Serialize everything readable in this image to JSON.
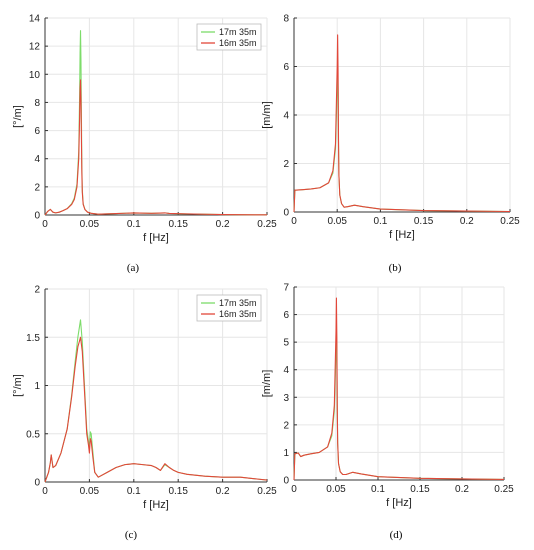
{
  "colors": {
    "series_a": "#7ddc6a",
    "series_b": "#e2473a",
    "grid": "#e6e6e6",
    "axis": "#333333"
  },
  "chart_data": [
    {
      "type": "line",
      "caption": "(a)",
      "xlabel": "f [Hz]",
      "ylabel": "[°/m]",
      "xlim": [
        0,
        0.25
      ],
      "ylim": [
        0,
        14
      ],
      "xticks": [
        0,
        0.05,
        0.1,
        0.15,
        0.2,
        0.25
      ],
      "xtick_labels": [
        "0",
        "0.05",
        "0.1",
        "0.15",
        "0.2",
        "0.25"
      ],
      "yticks": [
        0,
        2,
        4,
        6,
        8,
        10,
        12,
        14
      ],
      "ytick_labels": [
        "0",
        "2",
        "4",
        "6",
        "8",
        "10",
        "12",
        "14"
      ],
      "grid": true,
      "legend": "top-right",
      "series": [
        {
          "name": "17m 35m",
          "color": "#7ddc6a",
          "x": [
            0,
            0.003,
            0.006,
            0.009,
            0.012,
            0.016,
            0.02,
            0.025,
            0.03,
            0.033,
            0.036,
            0.038,
            0.039,
            0.0395,
            0.04,
            0.0405,
            0.041,
            0.0415,
            0.042,
            0.043,
            0.045,
            0.048,
            0.052,
            0.06,
            0.08,
            0.1,
            0.12,
            0.135,
            0.14,
            0.16,
            0.2,
            0.25
          ],
          "y": [
            0,
            0.25,
            0.4,
            0.2,
            0.15,
            0.2,
            0.3,
            0.45,
            0.8,
            1.2,
            2.2,
            4.5,
            8.5,
            11.5,
            13.1,
            11,
            7,
            3.5,
            1.8,
            0.8,
            0.4,
            0.2,
            0.12,
            0.06,
            0.1,
            0.15,
            0.12,
            0.15,
            0.11,
            0.08,
            0.03,
            0.01
          ]
        },
        {
          "name": "16m 35m",
          "color": "#e2473a",
          "x": [
            0,
            0.003,
            0.006,
            0.009,
            0.012,
            0.016,
            0.02,
            0.025,
            0.03,
            0.033,
            0.036,
            0.038,
            0.039,
            0.0395,
            0.04,
            0.0405,
            0.041,
            0.0415,
            0.042,
            0.043,
            0.045,
            0.048,
            0.052,
            0.06,
            0.08,
            0.1,
            0.12,
            0.135,
            0.14,
            0.16,
            0.2,
            0.25
          ],
          "y": [
            0,
            0.25,
            0.4,
            0.2,
            0.15,
            0.2,
            0.3,
            0.45,
            0.75,
            1.1,
            2,
            4,
            7,
            9,
            9.6,
            8.2,
            5.5,
            3,
            1.6,
            0.75,
            0.38,
            0.2,
            0.12,
            0.06,
            0.1,
            0.15,
            0.12,
            0.15,
            0.11,
            0.08,
            0.03,
            0.01
          ]
        }
      ]
    },
    {
      "type": "line",
      "caption": "(b)",
      "xlabel": "f [Hz]",
      "ylabel": "[m/m]",
      "xlim": [
        0,
        0.25
      ],
      "ylim": [
        0,
        8
      ],
      "xticks": [
        0,
        0.05,
        0.1,
        0.15,
        0.2,
        0.25
      ],
      "xtick_labels": [
        "0",
        "0.05",
        "0.1",
        "0.15",
        "0.2",
        "0.25"
      ],
      "yticks": [
        0,
        2,
        4,
        6,
        8
      ],
      "ytick_labels": [
        "0",
        "2",
        "4",
        "6",
        "8"
      ],
      "grid": true,
      "legend": "none",
      "series": [
        {
          "name": "17m 35m",
          "color": "#7ddc6a",
          "x": [
            0,
            0.001,
            0.01,
            0.02,
            0.03,
            0.04,
            0.045,
            0.048,
            0.05,
            0.0505,
            0.051,
            0.0515,
            0.052,
            0.053,
            0.055,
            0.058,
            0.062,
            0.07,
            0.08,
            0.1,
            0.15,
            0.2,
            0.25
          ],
          "y": [
            0,
            0.9,
            0.92,
            0.95,
            1.0,
            1.2,
            1.6,
            2.6,
            5.2,
            6.1,
            5.0,
            2.8,
            1.5,
            0.7,
            0.35,
            0.2,
            0.22,
            0.28,
            0.22,
            0.12,
            0.06,
            0.04,
            0.02
          ]
        },
        {
          "name": "16m 35m",
          "color": "#e2473a",
          "x": [
            0,
            0.001,
            0.01,
            0.02,
            0.03,
            0.04,
            0.045,
            0.048,
            0.05,
            0.0505,
            0.051,
            0.0515,
            0.052,
            0.053,
            0.055,
            0.058,
            0.062,
            0.07,
            0.08,
            0.1,
            0.15,
            0.2,
            0.25
          ],
          "y": [
            0,
            0.9,
            0.92,
            0.95,
            1.0,
            1.2,
            1.7,
            2.8,
            6.0,
            7.3,
            5.8,
            3.0,
            1.5,
            0.7,
            0.35,
            0.2,
            0.22,
            0.28,
            0.22,
            0.12,
            0.06,
            0.04,
            0.02
          ]
        }
      ]
    },
    {
      "type": "line",
      "caption": "(c)",
      "xlabel": "f [Hz]",
      "ylabel": "[°/m]",
      "xlim": [
        0,
        0.25
      ],
      "ylim": [
        0,
        2
      ],
      "xticks": [
        0,
        0.05,
        0.1,
        0.15,
        0.2,
        0.25
      ],
      "xtick_labels": [
        "0",
        "0.05",
        "0.1",
        "0.15",
        "0.2",
        "0.25"
      ],
      "yticks": [
        0,
        0.5,
        1,
        1.5,
        2
      ],
      "ytick_labels": [
        "0",
        "0.5",
        "1",
        "1.5",
        "2"
      ],
      "grid": true,
      "legend": "top-right",
      "series": [
        {
          "name": "17m 35m",
          "color": "#7ddc6a",
          "x": [
            0,
            0.004,
            0.006,
            0.007,
            0.009,
            0.012,
            0.018,
            0.025,
            0.03,
            0.034,
            0.037,
            0.04,
            0.042,
            0.045,
            0.047,
            0.049,
            0.05,
            0.051,
            0.052,
            0.054,
            0.056,
            0.06,
            0.07,
            0.08,
            0.09,
            0.1,
            0.11,
            0.12,
            0.125,
            0.13,
            0.135,
            0.14,
            0.145,
            0.15,
            0.16,
            0.18,
            0.2,
            0.22,
            0.24,
            0.25
          ],
          "y": [
            0,
            0.1,
            0.2,
            0.28,
            0.15,
            0.17,
            0.3,
            0.55,
            0.9,
            1.25,
            1.5,
            1.68,
            1.45,
            0.9,
            0.55,
            0.42,
            0.35,
            0.52,
            0.5,
            0.3,
            0.1,
            0.05,
            0.1,
            0.15,
            0.18,
            0.19,
            0.18,
            0.17,
            0.15,
            0.12,
            0.18,
            0.15,
            0.12,
            0.1,
            0.08,
            0.06,
            0.05,
            0.05,
            0.03,
            0.02
          ]
        },
        {
          "name": "16m 35m",
          "color": "#e2473a",
          "x": [
            0,
            0.004,
            0.006,
            0.007,
            0.009,
            0.012,
            0.018,
            0.025,
            0.03,
            0.034,
            0.037,
            0.04,
            0.042,
            0.045,
            0.047,
            0.049,
            0.05,
            0.051,
            0.052,
            0.054,
            0.056,
            0.06,
            0.07,
            0.08,
            0.09,
            0.1,
            0.11,
            0.12,
            0.125,
            0.13,
            0.135,
            0.14,
            0.145,
            0.15,
            0.16,
            0.18,
            0.2,
            0.22,
            0.24,
            0.25
          ],
          "y": [
            0,
            0.1,
            0.2,
            0.28,
            0.15,
            0.17,
            0.3,
            0.55,
            0.88,
            1.2,
            1.4,
            1.5,
            1.35,
            0.85,
            0.5,
            0.38,
            0.3,
            0.45,
            0.42,
            0.25,
            0.1,
            0.05,
            0.1,
            0.15,
            0.18,
            0.19,
            0.18,
            0.17,
            0.15,
            0.12,
            0.19,
            0.15,
            0.12,
            0.1,
            0.08,
            0.06,
            0.05,
            0.05,
            0.03,
            0.02
          ]
        }
      ]
    },
    {
      "type": "line",
      "caption": "(d)",
      "xlabel": "f [Hz]",
      "ylabel": "[m/m]",
      "xlim": [
        0,
        0.25
      ],
      "ylim": [
        0,
        7
      ],
      "xticks": [
        0,
        0.05,
        0.1,
        0.15,
        0.2,
        0.25
      ],
      "xtick_labels": [
        "0",
        "0.05",
        "0.1",
        "0.15",
        "0.2",
        "0.25"
      ],
      "yticks": [
        0,
        1,
        2,
        3,
        4,
        5,
        6,
        7
      ],
      "ytick_labels": [
        "0",
        "1",
        "2",
        "3",
        "4",
        "5",
        "6",
        "7"
      ],
      "grid": true,
      "legend": "none",
      "series": [
        {
          "name": "17m 35m",
          "color": "#7ddc6a",
          "x": [
            0,
            0.001,
            0.005,
            0.008,
            0.012,
            0.02,
            0.03,
            0.04,
            0.045,
            0.048,
            0.05,
            0.0505,
            0.051,
            0.0515,
            0.052,
            0.053,
            0.055,
            0.058,
            0.062,
            0.07,
            0.08,
            0.1,
            0.15,
            0.2,
            0.25
          ],
          "y": [
            0,
            0.95,
            0.98,
            0.85,
            0.9,
            0.95,
            1.0,
            1.2,
            1.6,
            2.5,
            4.6,
            5.6,
            4.6,
            2.5,
            1.3,
            0.6,
            0.3,
            0.2,
            0.2,
            0.28,
            0.22,
            0.12,
            0.06,
            0.04,
            0.02
          ]
        },
        {
          "name": "16m 35m",
          "color": "#e2473a",
          "x": [
            0,
            0.001,
            0.005,
            0.008,
            0.012,
            0.02,
            0.03,
            0.04,
            0.045,
            0.048,
            0.05,
            0.0505,
            0.051,
            0.0515,
            0.052,
            0.053,
            0.055,
            0.058,
            0.062,
            0.07,
            0.08,
            0.1,
            0.15,
            0.2,
            0.25
          ],
          "y": [
            0,
            0.95,
            0.98,
            0.85,
            0.9,
            0.95,
            1.0,
            1.2,
            1.7,
            2.7,
            5.4,
            6.6,
            5.2,
            2.7,
            1.35,
            0.6,
            0.3,
            0.2,
            0.2,
            0.28,
            0.22,
            0.12,
            0.06,
            0.04,
            0.02
          ]
        }
      ]
    }
  ]
}
